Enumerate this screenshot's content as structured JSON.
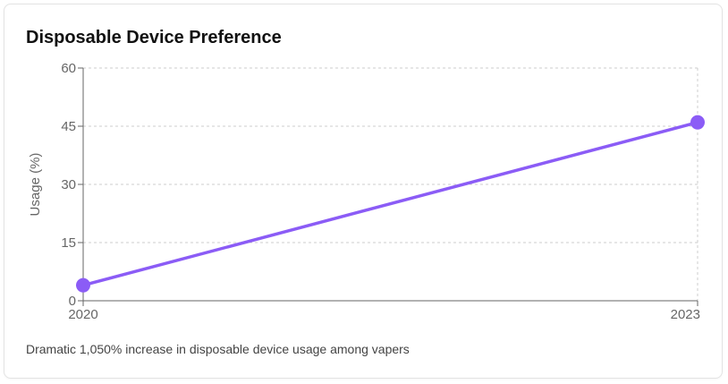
{
  "card": {
    "title": "Disposable Device Preference",
    "caption": "Dramatic 1,050% increase in disposable device usage among vapers"
  },
  "chart_data": {
    "type": "line",
    "title": "Disposable Device Preference",
    "xlabel": "",
    "ylabel": "Usage (%)",
    "x": [
      "2020",
      "2023"
    ],
    "series": [
      {
        "values": [
          4,
          46
        ],
        "color": "#8b5cf6"
      }
    ],
    "ylim": [
      0,
      60
    ],
    "yticks": [
      0,
      15,
      30,
      45,
      60
    ],
    "grid": true,
    "grid_style": "dashed",
    "legend": "none"
  }
}
